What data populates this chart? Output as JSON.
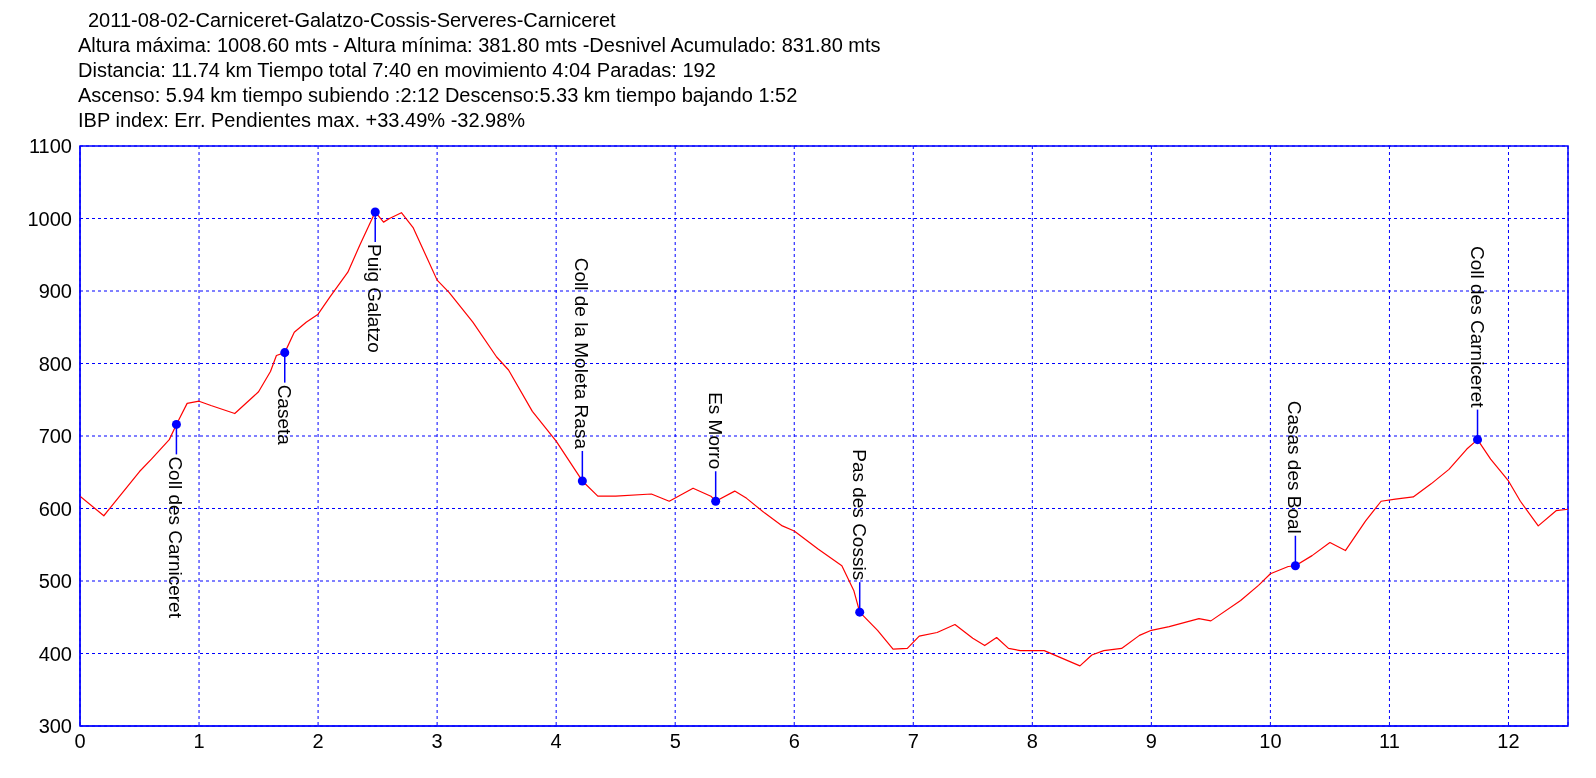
{
  "chart_data": {
    "type": "line",
    "title": "2011-08-02-Carniceret-Galatzo-Cossis-Serveres-Carniceret",
    "subtitle": "Altura máxima: 1008.60 mts - Altura mínima: 381.80 mts -Desnivel Acumulado: 831.80 mts",
    "annotations": [
      "Distancia: 11.74 km  Tiempo total 7:40  en movimiento 4:04 Paradas: 192",
      "Ascenso: 5.94 km  tiempo subiendo :2:12  Descenso:5.33 km tiempo bajando 1:52",
      "IBP index: Err.  Pendientes max. +33.49%  -32.98%",
      {
        "text": "Coll des Carniceret",
        "x": 0.81,
        "y": 716
      },
      {
        "text": "Caseta",
        "x": 1.72,
        "y": 815
      },
      {
        "text": "Puig Galatzo",
        "x": 2.48,
        "y": 1009
      },
      {
        "text": "Coll de la Moleta Rasa",
        "x": 4.22,
        "y": 638
      },
      {
        "text": "Es Morro",
        "x": 5.34,
        "y": 610
      },
      {
        "text": "Pas des Cossis",
        "x": 6.55,
        "y": 457
      },
      {
        "text": "Casas des Boal",
        "x": 10.21,
        "y": 521
      },
      {
        "text": "Coll des Carniceret",
        "x": 11.74,
        "y": 695
      }
    ],
    "series": [
      {
        "color": "#ff0000",
        "marker": "none",
        "x": [
          0,
          0.2,
          0.5,
          0.6,
          0.75,
          0.81,
          0.9,
          1.0,
          1.1,
          1.3,
          1.5,
          1.6,
          1.65,
          1.72,
          1.8,
          1.9,
          2.0,
          2.1,
          2.25,
          2.35,
          2.48,
          2.55,
          2.6,
          2.7,
          2.8,
          3.0,
          3.1,
          3.3,
          3.5,
          3.6,
          3.8,
          4.0,
          4.22,
          4.35,
          4.5,
          4.8,
          4.95,
          5.15,
          5.3,
          5.34,
          5.5,
          5.6,
          5.75,
          5.9,
          6.0,
          6.2,
          6.4,
          6.5,
          6.55,
          6.7,
          6.83,
          6.95,
          7.05,
          7.2,
          7.35,
          7.5,
          7.6,
          7.7,
          7.8,
          7.9,
          8.0,
          8.1,
          8.4,
          8.5,
          8.6,
          8.75,
          8.9,
          9.0,
          9.15,
          9.4,
          9.5,
          9.75,
          9.9,
          10.0,
          10.15,
          10.21,
          10.35,
          10.5,
          10.63,
          10.8,
          10.93,
          11.05,
          11.2,
          11.35,
          11.5,
          11.65,
          11.74,
          11.85,
          12.0,
          12.1,
          12.25,
          12.4,
          12.5
        ],
        "values": [
          617,
          590,
          651,
          668,
          695,
          716,
          745,
          748,
          742,
          731,
          761,
          789,
          811,
          815,
          843,
          857,
          868,
          892,
          926,
          963,
          1009,
          995,
          1000,
          1008,
          987,
          915,
          898,
          857,
          809,
          791,
          734,
          693,
          638,
          617,
          617,
          620,
          610,
          628,
          617,
          610,
          624,
          614,
          594,
          576,
          569,
          544,
          521,
          487,
          457,
          432,
          406,
          407,
          424,
          429,
          440,
          421,
          411,
          422,
          407,
          404,
          404,
          404,
          383,
          398,
          404,
          407,
          425,
          432,
          437,
          448,
          445,
          473,
          494,
          510,
          520,
          521,
          535,
          553,
          542,
          583,
          610,
          613,
          616,
          634,
          654,
          682,
          695,
          668,
          638,
          610,
          576,
          597,
          599
        ]
      },
      {
        "type": "scatter",
        "color": "#0000ff",
        "marker": "circle",
        "x": [
          0.81,
          1.72,
          2.48,
          4.22,
          5.34,
          6.55,
          10.21,
          11.74
        ],
        "values": [
          716,
          815,
          1009,
          638,
          610,
          457,
          521,
          695
        ]
      }
    ],
    "xlim": [
      0,
      12.5
    ],
    "xticks": [
      0,
      1,
      2,
      3,
      4,
      5,
      6,
      7,
      8,
      9,
      10,
      11,
      12
    ],
    "ylim": [
      300,
      1100
    ],
    "yticks": [
      300,
      400,
      500,
      600,
      700,
      800,
      900,
      1000,
      1100
    ],
    "grid": true,
    "legend": false
  }
}
